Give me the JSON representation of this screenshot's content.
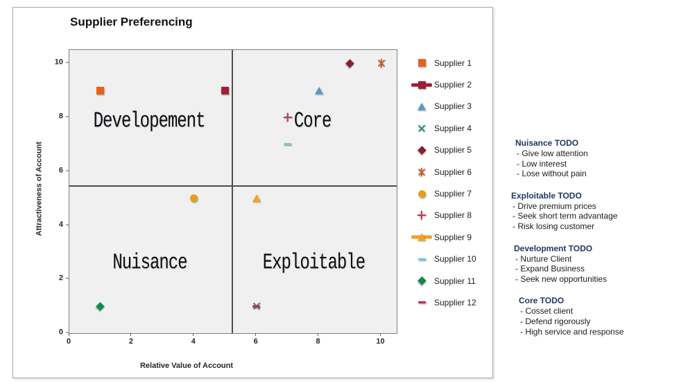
{
  "title": "Supplier Preferencing",
  "chart_data": {
    "type": "scatter",
    "title": "Supplier Preferencing",
    "xlabel": "Relative Value of Account",
    "ylabel": "Attractiveness of Account",
    "xlim": [
      0,
      10.5
    ],
    "ylim": [
      0,
      10.5
    ],
    "x_ticks": [
      0,
      2,
      4,
      6,
      8,
      10
    ],
    "y_ticks": [
      0,
      2,
      4,
      6,
      8,
      10
    ],
    "grid": false,
    "legend_position": "right",
    "plot_background": "#f0f0f0",
    "quadrant_divider": {
      "x": 5.2,
      "y": 5.47
    },
    "quadrant_labels": [
      {
        "label": "Developement",
        "x": 2.56,
        "y": 7.85
      },
      {
        "label": "Core",
        "x": 7.8,
        "y": 7.85
      },
      {
        "label": "Nuisance",
        "x": 2.58,
        "y": 2.6
      },
      {
        "label": "Exploitable",
        "x": 7.84,
        "y": 2.6
      }
    ],
    "series": [
      {
        "name": "Supplier 1",
        "x": 1,
        "y": 9,
        "marker": "square",
        "color": "#e8611c",
        "legend_line": false
      },
      {
        "name": "Supplier 2",
        "x": 5,
        "y": 9,
        "marker": "square",
        "color": "#a21e37",
        "legend_line": true
      },
      {
        "name": "Supplier 3",
        "x": 8,
        "y": 9,
        "marker": "triangle",
        "color": "#569bc9",
        "legend_line": false
      },
      {
        "name": "Supplier 4",
        "x": 6,
        "y": 1,
        "marker": "x",
        "color": "#2c9a59",
        "legend_line": false
      },
      {
        "name": "Supplier 5",
        "x": 9,
        "y": 10,
        "marker": "diamond",
        "color": "#8e1c2e",
        "legend_line": false
      },
      {
        "name": "Supplier 6",
        "x": 10,
        "y": 10,
        "marker": "star",
        "color": "#d2622e",
        "legend_line": false
      },
      {
        "name": "Supplier 7",
        "x": 4,
        "y": 5,
        "marker": "circle",
        "color": "#e3a01f",
        "legend_line": false
      },
      {
        "name": "Supplier 8",
        "x": 7,
        "y": 8,
        "marker": "plus",
        "color": "#c23b51",
        "legend_line": false
      },
      {
        "name": "Supplier 9",
        "x": 6,
        "y": 5,
        "marker": "triangle",
        "color": "#f2a227",
        "legend_line": true
      },
      {
        "name": "Supplier 10",
        "x": 7,
        "y": 7,
        "marker": "dash",
        "color": "#74c6e9",
        "legend_line": false
      },
      {
        "name": "Supplier 11",
        "x": 1,
        "y": 1,
        "marker": "diamond",
        "color": "#128a4e",
        "legend_line": false
      },
      {
        "name": "Supplier 12",
        "x": 6,
        "y": 1,
        "marker": "dash",
        "color": "#c62c4d",
        "legend_line": false
      }
    ]
  },
  "todo_panel": {
    "heading_color": "#1f3864",
    "sections": [
      {
        "heading": "Nuisance TODO",
        "items": [
          "- Give low attention",
          "- Low interest",
          "- Lose without pain"
        ]
      },
      {
        "heading": "Exploitable TODO",
        "items": [
          "- Drive premium prices",
          "- Seek short term advantage",
          "- Risk losing customer"
        ]
      },
      {
        "heading": "Development TODO",
        "items": [
          "- Nurture Client",
          "- Expand Business",
          "- Seek new opportunities"
        ]
      },
      {
        "heading": "Core TODO",
        "items": [
          "- Cosset client",
          "- Defend rigorously",
          "- High service and response"
        ]
      }
    ]
  }
}
